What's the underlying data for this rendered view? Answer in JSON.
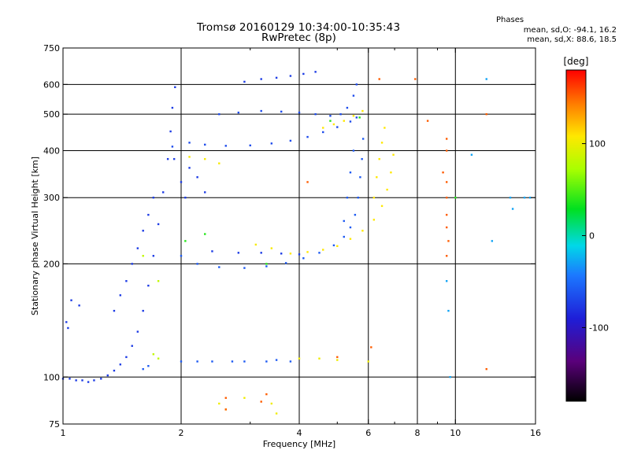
{
  "header": {
    "title_line1": "Tromsø 20160129 10:34:00-10:35:43",
    "title_line2": "RwPretec (8p)",
    "phase_title": "Phases",
    "phase_o": "mean, sd,O: -94.1, 16.2",
    "phase_x": "mean, sd,X:  88.6, 18.5"
  },
  "chart_data": {
    "type": "scatter",
    "title": "Tromsø 20160129 10:34:00-10:35:43",
    "subtitle": "RwPretec (8p)",
    "xlabel": "Frequency [MHz]",
    "ylabel": "Stationary phase Virtual Height [km]",
    "xscale": "log",
    "yscale": "log",
    "xlim": [
      1,
      16
    ],
    "ylim": [
      75,
      750
    ],
    "x_ticks": [
      "1",
      "2",
      "4",
      "6",
      "8",
      "10",
      "16"
    ],
    "x_tick_values": [
      1,
      2,
      4,
      6,
      8,
      10,
      16
    ],
    "x_minor_values": [
      3,
      5,
      7,
      9
    ],
    "x_grid_values": [
      2,
      4,
      6,
      8,
      10
    ],
    "y_ticks": [
      "75",
      "100",
      "200",
      "300",
      "400",
      "500",
      "600",
      "750"
    ],
    "y_tick_values": [
      75,
      100,
      200,
      300,
      400,
      500,
      600,
      750
    ],
    "y_grid_values": [
      100,
      200,
      300,
      400,
      500,
      600
    ],
    "grid": true,
    "colorbar": {
      "label": "[deg]",
      "range": [
        -180,
        180
      ],
      "ticks": [
        "100",
        "0",
        "-100"
      ],
      "tick_values": [
        100,
        0,
        -100
      ]
    },
    "series": [
      {
        "phase": -110,
        "points": [
          [
            1.0,
            99
          ],
          [
            1.04,
            99
          ],
          [
            1.08,
            98
          ],
          [
            1.12,
            98
          ],
          [
            1.16,
            97
          ],
          [
            1.2,
            98
          ],
          [
            1.25,
            99
          ],
          [
            1.3,
            101
          ],
          [
            1.35,
            104
          ],
          [
            1.4,
            108
          ],
          [
            1.45,
            113
          ],
          [
            1.5,
            121
          ],
          [
            1.55,
            132
          ],
          [
            1.6,
            150
          ],
          [
            1.65,
            175
          ],
          [
            1.7,
            210
          ],
          [
            1.75,
            255
          ],
          [
            1.8,
            310
          ],
          [
            1.85,
            380
          ],
          [
            1.88,
            450
          ],
          [
            1.9,
            520
          ],
          [
            1.93,
            590
          ]
        ]
      },
      {
        "phase": -110,
        "points": [
          [
            1.35,
            150
          ],
          [
            1.4,
            165
          ],
          [
            1.45,
            180
          ],
          [
            1.5,
            200
          ],
          [
            1.55,
            220
          ],
          [
            1.6,
            245
          ],
          [
            1.65,
            270
          ],
          [
            1.7,
            300
          ]
        ]
      },
      {
        "phase": -110,
        "points": [
          [
            1.03,
            135
          ],
          [
            1.05,
            160
          ],
          [
            1.1,
            155
          ],
          [
            1.02,
            140
          ]
        ]
      },
      {
        "phase": -105,
        "points": [
          [
            1.9,
            410
          ],
          [
            2.1,
            420
          ],
          [
            2.3,
            415
          ],
          [
            2.6,
            412
          ],
          [
            3.0,
            413
          ],
          [
            3.4,
            418
          ],
          [
            3.8,
            425
          ],
          [
            4.2,
            435
          ],
          [
            4.6,
            448
          ],
          [
            5.0,
            462
          ],
          [
            5.4,
            478
          ],
          [
            5.6,
            490
          ]
        ]
      },
      {
        "phase": -105,
        "points": [
          [
            2.5,
            500
          ],
          [
            2.8,
            505
          ],
          [
            3.2,
            510
          ],
          [
            3.6,
            508
          ],
          [
            4.0,
            505
          ],
          [
            4.4,
            500
          ],
          [
            4.8,
            495
          ],
          [
            5.1,
            500
          ],
          [
            5.3,
            520
          ],
          [
            5.5,
            560
          ],
          [
            5.6,
            600
          ]
        ]
      },
      {
        "phase": -110,
        "points": [
          [
            2.9,
            610
          ],
          [
            3.2,
            620
          ],
          [
            3.5,
            625
          ],
          [
            3.8,
            632
          ],
          [
            4.1,
            640
          ],
          [
            4.4,
            648
          ]
        ]
      },
      {
        "phase": -100,
        "points": [
          [
            2.0,
            210
          ],
          [
            2.2,
            200
          ],
          [
            2.5,
            196
          ],
          [
            2.9,
            195
          ],
          [
            3.3,
            197
          ],
          [
            3.7,
            201
          ],
          [
            4.1,
            207
          ],
          [
            4.5,
            214
          ],
          [
            4.9,
            224
          ],
          [
            5.2,
            236
          ],
          [
            5.4,
            250
          ],
          [
            5.55,
            270
          ],
          [
            5.65,
            300
          ],
          [
            5.72,
            340
          ],
          [
            5.78,
            380
          ],
          [
            5.82,
            430
          ]
        ]
      },
      {
        "phase": -100,
        "points": [
          [
            5.2,
            260
          ],
          [
            5.3,
            300
          ],
          [
            5.4,
            350
          ],
          [
            5.5,
            400
          ]
        ]
      },
      {
        "phase": -110,
        "points": [
          [
            2.4,
            216
          ],
          [
            2.8,
            214
          ],
          [
            3.2,
            214
          ],
          [
            3.6,
            213
          ],
          [
            4.0,
            212
          ],
          [
            2.0,
            330
          ],
          [
            2.1,
            360
          ],
          [
            2.2,
            340
          ],
          [
            2.3,
            310
          ],
          [
            1.92,
            380
          ],
          [
            2.05,
            300
          ]
        ]
      },
      {
        "phase": -100,
        "points": [
          [
            2.0,
            110
          ],
          [
            2.2,
            110
          ],
          [
            2.4,
            110
          ],
          [
            2.7,
            110
          ],
          [
            2.9,
            110
          ],
          [
            3.3,
            110
          ],
          [
            3.5,
            111
          ],
          [
            3.8,
            110
          ],
          [
            1.6,
            105
          ],
          [
            1.65,
            107
          ]
        ]
      },
      {
        "phase": 100,
        "points": [
          [
            3.8,
            213
          ],
          [
            4.2,
            215
          ],
          [
            4.6,
            218
          ],
          [
            5.0,
            223
          ],
          [
            5.4,
            233
          ],
          [
            5.8,
            245
          ],
          [
            6.2,
            262
          ],
          [
            6.5,
            285
          ],
          [
            6.7,
            315
          ],
          [
            6.85,
            350
          ],
          [
            6.95,
            390
          ]
        ]
      },
      {
        "phase": 100,
        "points": [
          [
            4.6,
            460
          ],
          [
            4.9,
            470
          ],
          [
            5.2,
            480
          ],
          [
            5.5,
            495
          ],
          [
            5.8,
            510
          ]
        ]
      },
      {
        "phase": 100,
        "points": [
          [
            6.2,
            300
          ],
          [
            6.3,
            340
          ],
          [
            6.4,
            380
          ],
          [
            6.5,
            420
          ],
          [
            6.6,
            460
          ]
        ]
      },
      {
        "phase": 95,
        "points": [
          [
            2.1,
            385
          ],
          [
            2.3,
            380
          ],
          [
            2.5,
            370
          ],
          [
            3.1,
            225
          ],
          [
            3.4,
            220
          ]
        ]
      },
      {
        "phase": 90,
        "points": [
          [
            4.0,
            112
          ],
          [
            4.5,
            112
          ],
          [
            5.0,
            111
          ],
          [
            6.0,
            110
          ],
          [
            3.5,
            80
          ],
          [
            3.4,
            85
          ],
          [
            2.9,
            88
          ],
          [
            2.6,
            82
          ],
          [
            2.5,
            85
          ]
        ]
      },
      {
        "phase": 60,
        "points": [
          [
            1.6,
            210
          ],
          [
            1.75,
            180
          ],
          [
            1.7,
            115
          ],
          [
            1.75,
            112
          ]
        ]
      },
      {
        "phase": 10,
        "points": [
          [
            2.05,
            230
          ],
          [
            2.3,
            240
          ],
          [
            3.3,
            200
          ],
          [
            4.8,
            480
          ],
          [
            5.7,
            490
          ],
          [
            10.0,
            300
          ]
        ]
      },
      {
        "phase": 150,
        "points": [
          [
            7.9,
            620
          ],
          [
            8.5,
            480
          ],
          [
            9.5,
            430
          ],
          [
            9.5,
            400
          ],
          [
            9.3,
            350
          ],
          [
            9.5,
            330
          ],
          [
            9.5,
            300
          ],
          [
            9.5,
            270
          ],
          [
            9.5,
            250
          ],
          [
            9.6,
            230
          ],
          [
            9.5,
            210
          ],
          [
            6.4,
            620
          ],
          [
            12.0,
            500
          ],
          [
            6.1,
            120
          ],
          [
            12.0,
            105
          ],
          [
            3.3,
            90
          ],
          [
            3.2,
            86
          ],
          [
            2.6,
            88
          ],
          [
            2.6,
            82
          ],
          [
            5.0,
            113
          ],
          [
            4.2,
            330
          ]
        ]
      },
      {
        "phase": -70,
        "points": [
          [
            9.5,
            180
          ],
          [
            9.6,
            150
          ],
          [
            9.7,
            100
          ],
          [
            12.0,
            620
          ],
          [
            12.4,
            230
          ],
          [
            11.0,
            390
          ],
          [
            13.8,
            300
          ],
          [
            15.0,
            300
          ],
          [
            15.5,
            300
          ],
          [
            14.0,
            280
          ]
        ]
      }
    ]
  }
}
